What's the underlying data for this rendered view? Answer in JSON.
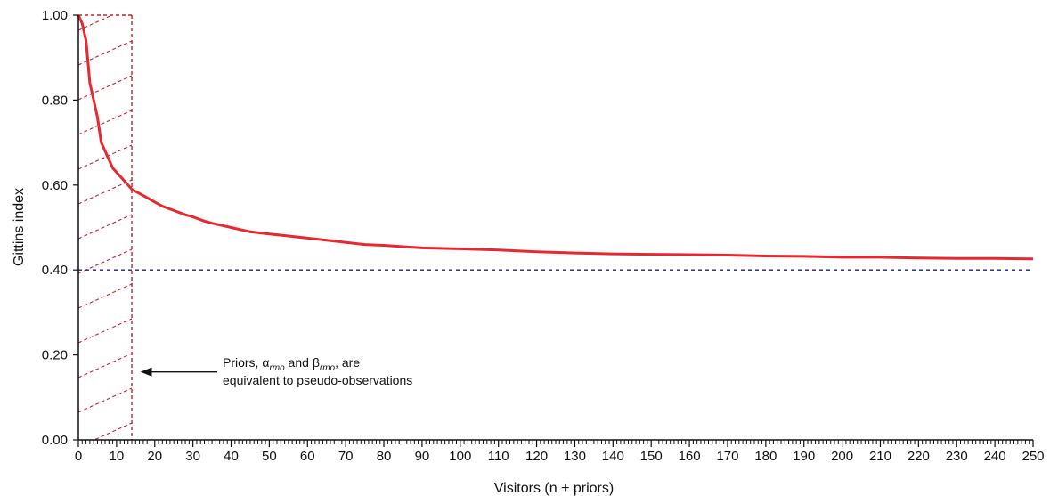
{
  "chart_data": {
    "type": "line",
    "title": "",
    "xlabel": "Visitors (n + priors)",
    "ylabel": "Gittins index",
    "xlim": [
      0,
      250
    ],
    "ylim": [
      0,
      1
    ],
    "xticks": [
      0,
      10,
      20,
      30,
      40,
      50,
      60,
      70,
      80,
      90,
      100,
      110,
      120,
      130,
      140,
      150,
      160,
      170,
      180,
      190,
      200,
      210,
      220,
      230,
      240,
      250
    ],
    "yticks": [
      "0.00",
      "0.20",
      "0.40",
      "0.60",
      "0.80",
      "1.00"
    ],
    "series": [
      {
        "color": "#e8282f",
        "x": [
          0,
          1,
          2,
          3,
          4,
          5,
          6,
          7,
          8,
          9,
          10,
          11,
          12,
          13,
          14,
          15,
          16,
          17,
          18,
          20,
          22,
          25,
          28,
          30,
          33,
          35,
          40,
          45,
          50,
          55,
          60,
          65,
          70,
          75,
          80,
          85,
          90,
          100,
          110,
          120,
          130,
          140,
          150,
          160,
          170,
          180,
          190,
          200,
          210,
          220,
          230,
          240,
          250
        ],
        "y": [
          1.0,
          0.98,
          0.94,
          0.84,
          0.8,
          0.76,
          0.7,
          0.68,
          0.66,
          0.64,
          0.63,
          0.62,
          0.61,
          0.6,
          0.59,
          0.585,
          0.58,
          0.575,
          0.57,
          0.56,
          0.55,
          0.54,
          0.53,
          0.525,
          0.515,
          0.51,
          0.5,
          0.49,
          0.485,
          0.48,
          0.475,
          0.47,
          0.465,
          0.46,
          0.458,
          0.455,
          0.452,
          0.45,
          0.447,
          0.443,
          0.44,
          0.438,
          0.437,
          0.436,
          0.435,
          0.433,
          0.432,
          0.43,
          0.43,
          0.428,
          0.427,
          0.427,
          0.426
        ]
      }
    ],
    "reference_line": {
      "y": 0.4,
      "color": "#1a1a8c",
      "style": "dashed"
    },
    "prior_region": {
      "x_from": 0,
      "x_to": 14,
      "y_from": 0,
      "y_to": 1,
      "color": "#c8202a",
      "style": "dashed-hatched"
    },
    "annotation": {
      "line1_prefix": "Priors, ",
      "alpha_symbol": "α",
      "alpha_sub": "rmo",
      "line1_mid": " and ",
      "beta_symbol": "β",
      "beta_sub": "rmo",
      "line1_suffix": ", are",
      "line2": "equivalent to pseudo-observations",
      "arrow_target_x": 14,
      "arrow_target_y": 0.16
    }
  }
}
